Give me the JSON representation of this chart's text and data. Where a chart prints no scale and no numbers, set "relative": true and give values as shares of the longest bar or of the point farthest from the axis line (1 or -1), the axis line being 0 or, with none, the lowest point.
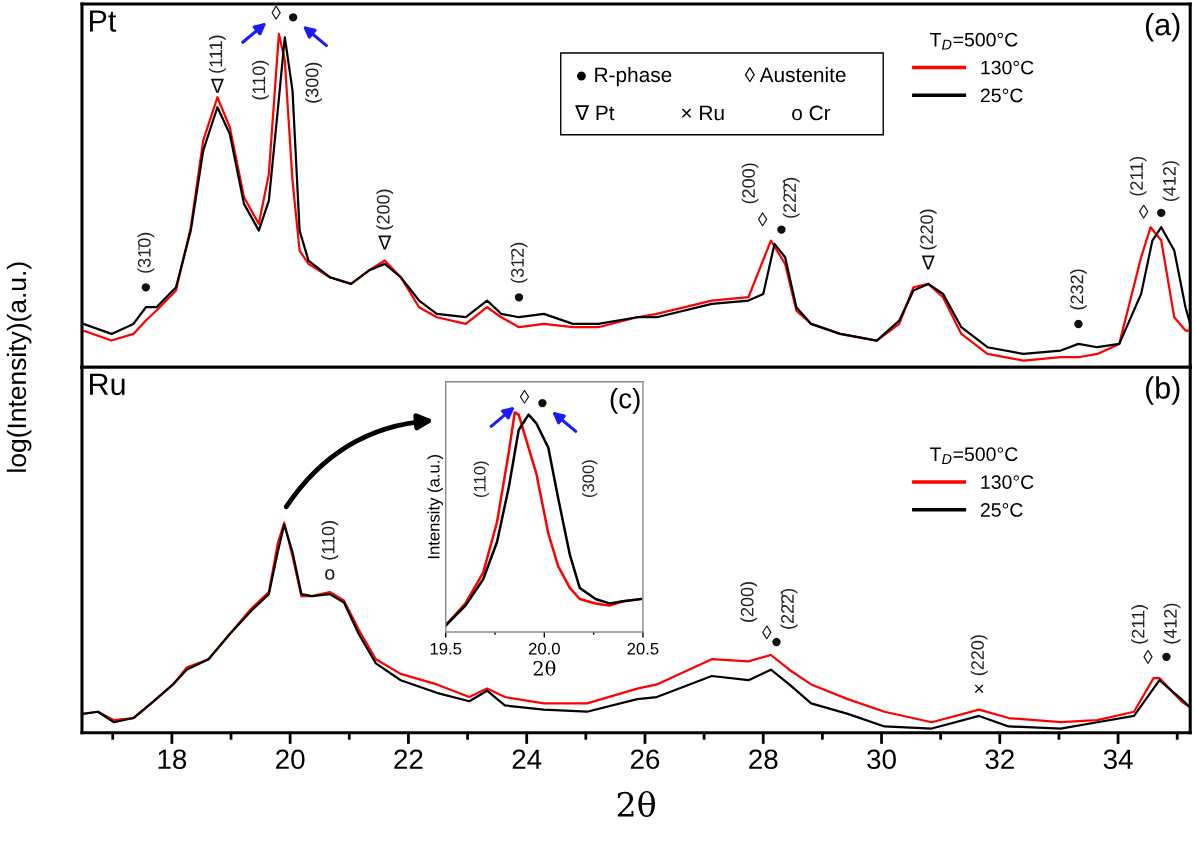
{
  "chart_data": [
    {
      "type": "line",
      "title": "Pt",
      "ylabel": "log(Intensity)(a.u.)",
      "relative": true,
      "legend": "top right",
      "legend_title": "T$_{D}$=500°C",
      "tick_labels": false,
      "xlim": [
        16.48,
        35.22
      ],
      "xticks": [
        {
          "value": 17,
          "label": null
        },
        18,
        {
          "value": 19,
          "label": null
        },
        20,
        {
          "value": 21,
          "label": null
        },
        22,
        {
          "value": 23,
          "label": null
        },
        24,
        {
          "value": 25,
          "label": null
        },
        26,
        {
          "value": 27,
          "label": null
        },
        28,
        {
          "value": 29,
          "label": null
        },
        30,
        {
          "value": 31,
          "label": null
        },
        32,
        {
          "value": 33,
          "label": null
        },
        34,
        {
          "value": 35,
          "label": null
        }
      ],
      "series": [
        {
          "name": "130°C",
          "color": "#ff0000",
          "x": [
            16.5,
            16.98,
            17.35,
            17.56,
            17.74,
            18.07,
            18.32,
            18.53,
            18.77,
            18.98,
            19.22,
            19.47,
            19.64,
            19.81,
            19.91,
            20.04,
            20.16,
            20.31,
            20.67,
            21.03,
            21.33,
            21.6,
            21.87,
            22.18,
            22.48,
            22.97,
            23.33,
            23.57,
            23.87,
            24.29,
            24.78,
            25.21,
            25.87,
            26.2,
            27.13,
            27.75,
            28.13,
            28.37,
            28.56,
            28.81,
            29.3,
            29.92,
            30.3,
            30.54,
            30.79,
            31.04,
            31.35,
            31.79,
            32.4,
            33.03,
            33.33,
            33.65,
            34.02,
            34.39,
            34.55,
            34.73,
            34.95,
            35.14,
            35.22
          ],
          "values": [
            0.11,
            0.08,
            0.1,
            0.14,
            0.17,
            0.23,
            0.42,
            0.68,
            0.81,
            0.72,
            0.51,
            0.43,
            0.58,
            1.0,
            0.92,
            0.56,
            0.35,
            0.31,
            0.27,
            0.25,
            0.29,
            0.32,
            0.27,
            0.18,
            0.15,
            0.13,
            0.18,
            0.15,
            0.12,
            0.13,
            0.12,
            0.12,
            0.15,
            0.16,
            0.2,
            0.21,
            0.38,
            0.31,
            0.17,
            0.13,
            0.1,
            0.08,
            0.13,
            0.24,
            0.25,
            0.21,
            0.1,
            0.04,
            0.02,
            0.03,
            0.03,
            0.04,
            0.07,
            0.33,
            0.42,
            0.38,
            0.15,
            0.11,
            0.11
          ]
        },
        {
          "name": "25°C",
          "color": "#000000",
          "x": [
            16.5,
            16.98,
            17.35,
            17.56,
            17.74,
            18.07,
            18.32,
            18.53,
            18.77,
            18.98,
            19.22,
            19.47,
            19.64,
            19.79,
            19.91,
            20.04,
            20.16,
            20.31,
            20.67,
            21.03,
            21.33,
            21.6,
            21.87,
            22.18,
            22.48,
            22.97,
            23.33,
            23.57,
            23.87,
            24.29,
            24.78,
            25.21,
            25.87,
            26.2,
            27.13,
            27.75,
            28.0,
            28.19,
            28.37,
            28.56,
            28.81,
            29.3,
            29.92,
            30.3,
            30.54,
            30.79,
            31.04,
            31.35,
            31.79,
            32.4,
            33.03,
            33.33,
            33.65,
            34.02,
            34.39,
            34.58,
            34.73,
            34.95,
            35.14,
            35.22
          ],
          "values": [
            0.13,
            0.1,
            0.13,
            0.18,
            0.18,
            0.24,
            0.41,
            0.65,
            0.78,
            0.7,
            0.49,
            0.41,
            0.5,
            0.77,
            0.99,
            0.83,
            0.41,
            0.32,
            0.27,
            0.25,
            0.29,
            0.31,
            0.27,
            0.2,
            0.16,
            0.15,
            0.2,
            0.16,
            0.15,
            0.16,
            0.13,
            0.13,
            0.15,
            0.15,
            0.19,
            0.2,
            0.22,
            0.37,
            0.33,
            0.18,
            0.13,
            0.1,
            0.08,
            0.14,
            0.23,
            0.25,
            0.22,
            0.12,
            0.06,
            0.04,
            0.05,
            0.07,
            0.06,
            0.07,
            0.22,
            0.38,
            0.42,
            0.35,
            0.18,
            0.13
          ]
        }
      ],
      "annotations": [
        "(a)",
        "● R-phase",
        "◊ Austenite",
        "∇ Pt",
        "× Ru",
        "o Cr",
        {
          "text": "●",
          "x": 17.56,
          "y": 0.18
        },
        {
          "text": "(31̄0)",
          "x": 17.56,
          "y": 0.18
        },
        {
          "text": "∇",
          "x": 18.77,
          "y": 0.78
        },
        {
          "text": "(111)",
          "x": 18.77,
          "y": 0.78
        },
        "(110)",
        {
          "text": "◊",
          "x": 19.81,
          "y": 1.0
        },
        {
          "text": "●",
          "x": 19.91,
          "y": 0.99
        },
        "(300)",
        {
          "text": "∇",
          "x": 21.6,
          "y": 0.31
        },
        {
          "text": "(200)",
          "x": 21.6,
          "y": 0.31
        },
        {
          "text": "●",
          "x": 23.87,
          "y": 0.15
        },
        {
          "text": "(31̄2)",
          "x": 23.87,
          "y": 0.15
        },
        {
          "text": "◊",
          "x": 28.13,
          "y": 0.38
        },
        {
          "text": "(200)",
          "x": 28.13,
          "y": 0.38
        },
        {
          "text": "●",
          "x": 28.19,
          "y": 0.37
        },
        {
          "text": "(22̄2̄)",
          "x": 28.19,
          "y": 0.37
        },
        {
          "text": "∇",
          "x": 30.79,
          "y": 0.25
        },
        {
          "text": "(220)",
          "x": 30.79,
          "y": 0.25
        },
        {
          "text": "●",
          "x": 33.33,
          "y": 0.07
        },
        {
          "text": "(232)",
          "x": 33.33,
          "y": 0.07
        },
        {
          "text": "◊",
          "x": 34.55,
          "y": 0.42
        },
        {
          "text": "(211)",
          "x": 34.55,
          "y": 0.42
        },
        {
          "text": "●",
          "x": 34.73,
          "y": 0.42
        },
        {
          "text": "(412)",
          "x": 34.73,
          "y": 0.42
        }
      ]
    },
    {
      "type": "line",
      "title": "Ru",
      "xlabel": "2θ",
      "relative": true,
      "legend": "top right",
      "legend_title": "T$_{D}$=500°C",
      "tick_labels": "x",
      "xlim": [
        16.48,
        35.22
      ],
      "xticks": [
        {
          "value": 17,
          "label": null
        },
        18,
        {
          "value": 19,
          "label": null
        },
        20,
        {
          "value": 21,
          "label": null
        },
        22,
        {
          "value": 23,
          "label": null
        },
        24,
        {
          "value": 25,
          "label": null
        },
        26,
        {
          "value": 27,
          "label": null
        },
        28,
        {
          "value": 29,
          "label": null
        },
        30,
        {
          "value": 31,
          "label": null
        },
        32,
        {
          "value": 33,
          "label": null
        },
        34,
        {
          "value": 35,
          "label": null
        }
      ],
      "series": [
        {
          "name": "130°C",
          "color": "#ff0000",
          "x": [
            16.5,
            16.75,
            17.02,
            17.35,
            17.65,
            18.02,
            18.25,
            18.62,
            18.98,
            19.34,
            19.64,
            19.79,
            19.9,
            20.04,
            20.19,
            20.37,
            20.67,
            20.91,
            21.16,
            21.45,
            21.87,
            22.48,
            23.03,
            23.33,
            23.63,
            24.29,
            25.02,
            25.87,
            26.2,
            27.13,
            27.75,
            28.13,
            28.44,
            28.81,
            29.43,
            30.05,
            30.85,
            31.65,
            32.15,
            33.03,
            33.65,
            34.27,
            34.6,
            34.7,
            35.07,
            35.22
          ],
          "values": [
            0.09,
            0.1,
            0.06,
            0.07,
            0.14,
            0.23,
            0.31,
            0.35,
            0.47,
            0.59,
            0.67,
            0.9,
            1.0,
            0.84,
            0.65,
            0.65,
            0.67,
            0.63,
            0.49,
            0.35,
            0.28,
            0.23,
            0.17,
            0.21,
            0.17,
            0.14,
            0.14,
            0.21,
            0.23,
            0.35,
            0.34,
            0.37,
            0.3,
            0.23,
            0.16,
            0.1,
            0.05,
            0.11,
            0.07,
            0.05,
            0.06,
            0.1,
            0.26,
            0.26,
            0.15,
            0.12
          ]
        },
        {
          "name": "25°C",
          "color": "#000000",
          "x": [
            16.5,
            16.75,
            17.02,
            17.35,
            17.65,
            18.02,
            18.25,
            18.62,
            18.98,
            19.34,
            19.64,
            19.79,
            19.9,
            20.04,
            20.19,
            20.37,
            20.67,
            20.91,
            21.16,
            21.45,
            21.87,
            22.48,
            23.03,
            23.33,
            23.63,
            24.29,
            25.02,
            25.87,
            26.2,
            27.13,
            27.75,
            28.13,
            28.44,
            28.81,
            29.43,
            30.05,
            30.85,
            31.65,
            32.15,
            33.03,
            33.65,
            34.27,
            34.7,
            35.07,
            35.22
          ],
          "values": [
            0.09,
            0.1,
            0.05,
            0.07,
            0.14,
            0.23,
            0.3,
            0.35,
            0.47,
            0.58,
            0.66,
            0.86,
            0.99,
            0.86,
            0.66,
            0.65,
            0.66,
            0.62,
            0.47,
            0.33,
            0.25,
            0.19,
            0.15,
            0.2,
            0.13,
            0.11,
            0.1,
            0.16,
            0.17,
            0.27,
            0.25,
            0.3,
            0.23,
            0.14,
            0.09,
            0.03,
            0.02,
            0.08,
            0.03,
            0.02,
            0.05,
            0.08,
            0.25,
            0.16,
            0.12
          ]
        }
      ],
      "annotations": [
        "(b)",
        {
          "text": "o",
          "x": 20.67,
          "y": 0.66
        },
        {
          "text": "(110)",
          "x": 20.67,
          "y": 0.66
        },
        {
          "text": "◊",
          "x": 28.13,
          "y": 0.37
        },
        {
          "text": "●",
          "x": 28.13,
          "y": 0.37
        },
        {
          "text": "(200)",
          "x": 28.13,
          "y": 0.37
        },
        {
          "text": "(22̄2̄)",
          "x": 28.13,
          "y": 0.37
        },
        {
          "text": "×",
          "x": 31.65,
          "y": 0.11
        },
        {
          "text": "(220)",
          "x": 31.65,
          "y": 0.11
        },
        {
          "text": "◊",
          "x": 34.6,
          "y": 0.26
        },
        {
          "text": "●",
          "x": 34.7,
          "y": 0.26
        },
        {
          "text": "(211)",
          "x": 34.6,
          "y": 0.26
        },
        {
          "text": "(412)",
          "x": 34.7,
          "y": 0.26
        }
      ]
    },
    {
      "type": "line",
      "xlabel": "2θ",
      "ylabel": "Intensity (a.u.)",
      "relative": true,
      "tick_labels": "x",
      "xlim": [
        19.5,
        20.5
      ],
      "xticks": [
        19.5,
        {
          "value": 19.75,
          "label": null
        },
        {
          "value": 20,
          "label": "20.0"
        },
        {
          "value": 20.25,
          "label": null
        },
        20.5
      ],
      "series": [
        {
          "color": "#ff0000",
          "x": [
            19.5,
            19.6,
            19.69,
            19.76,
            19.82,
            19.85,
            19.87,
            19.92,
            19.96,
            20.02,
            20.07,
            20.13,
            20.18,
            20.26,
            20.33,
            20.4,
            20.49
          ],
          "values": [
            0.03,
            0.13,
            0.27,
            0.5,
            0.82,
            1.0,
            0.99,
            0.84,
            0.72,
            0.45,
            0.3,
            0.2,
            0.15,
            0.13,
            0.12,
            0.14,
            0.15
          ]
        },
        {
          "color": "#000000",
          "x": [
            19.5,
            19.6,
            19.69,
            19.76,
            19.82,
            19.87,
            19.92,
            19.96,
            20.02,
            20.07,
            20.13,
            20.18,
            20.26,
            20.33,
            20.4,
            20.49
          ],
          "values": [
            0.03,
            0.12,
            0.24,
            0.41,
            0.66,
            0.92,
            0.99,
            0.95,
            0.84,
            0.61,
            0.35,
            0.2,
            0.15,
            0.13,
            0.14,
            0.15
          ]
        }
      ],
      "annotations": [
        "(c)",
        {
          "text": "◊",
          "x": 19.85,
          "y": 1.0
        },
        {
          "text": "●",
          "x": 19.92,
          "y": 0.99
        },
        "(110)",
        "(300)"
      ]
    }
  ]
}
